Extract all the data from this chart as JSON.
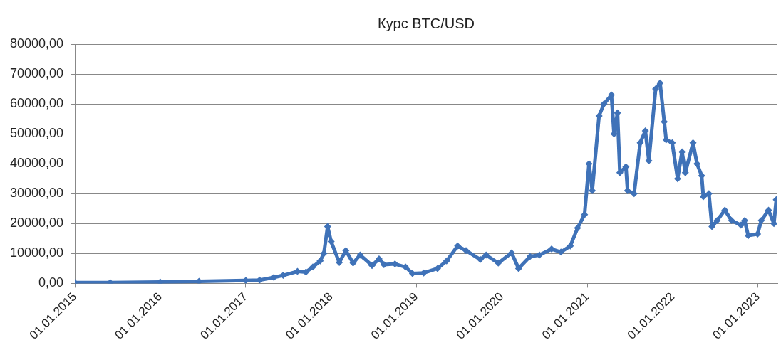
{
  "chart_data": {
    "type": "line",
    "title": "Курс BTC/USD",
    "marker": "diamond",
    "grid": "y",
    "legend": false,
    "x": [
      "2015-01-01",
      "2015-06-01",
      "2016-01-01",
      "2016-06-15",
      "2017-01-01",
      "2017-03-01",
      "2017-05-01",
      "2017-06-10",
      "2017-08-10",
      "2017-09-15",
      "2017-10-15",
      "2017-11-15",
      "2017-12-01",
      "2017-12-17",
      "2018-01-01",
      "2018-02-05",
      "2018-03-05",
      "2018-04-05",
      "2018-05-05",
      "2018-06-25",
      "2018-07-25",
      "2018-08-15",
      "2018-10-01",
      "2018-11-15",
      "2018-12-15",
      "2019-02-01",
      "2019-04-01",
      "2019-05-10",
      "2019-06-26",
      "2019-08-01",
      "2019-10-01",
      "2019-10-26",
      "2019-12-17",
      "2020-02-12",
      "2020-03-13",
      "2020-05-01",
      "2020-06-10",
      "2020-08-01",
      "2020-09-10",
      "2020-10-20",
      "2020-11-20",
      "2020-12-20",
      "2021-01-08",
      "2021-01-22",
      "2021-02-20",
      "2021-03-13",
      "2021-04-14",
      "2021-04-25",
      "2021-05-10",
      "2021-05-20",
      "2021-06-15",
      "2021-06-22",
      "2021-07-20",
      "2021-08-15",
      "2021-09-06",
      "2021-09-21",
      "2021-10-20",
      "2021-11-08",
      "2021-11-26",
      "2021-12-04",
      "2021-12-30",
      "2022-01-22",
      "2022-02-10",
      "2022-02-24",
      "2022-03-29",
      "2022-04-15",
      "2022-05-05",
      "2022-05-12",
      "2022-06-05",
      "2022-06-18",
      "2022-07-10",
      "2022-08-12",
      "2022-09-10",
      "2022-10-20",
      "2022-11-05",
      "2022-11-20",
      "2022-12-30",
      "2023-01-15",
      "2023-02-15",
      "2023-03-10",
      "2023-03-20"
    ],
    "series": [
      {
        "color": "#3f72b8",
        "values": [
          300,
          250,
          430,
          670,
          1000,
          1100,
          2000,
          2700,
          4000,
          3800,
          5500,
          7500,
          10000,
          19000,
          14000,
          7000,
          11000,
          6800,
          9500,
          6000,
          8200,
          6300,
          6500,
          5500,
          3300,
          3500,
          5000,
          7500,
          12500,
          11000,
          8000,
          9500,
          6800,
          10200,
          5000,
          9000,
          9500,
          11500,
          10500,
          12500,
          18500,
          23000,
          40000,
          31000,
          56000,
          60000,
          63000,
          50000,
          57000,
          37000,
          39000,
          31000,
          30000,
          47000,
          51000,
          41000,
          65000,
          67000,
          54000,
          48000,
          47000,
          35000,
          44000,
          37000,
          47000,
          40000,
          36000,
          29000,
          30000,
          19000,
          21000,
          24500,
          21000,
          19500,
          21000,
          16000,
          16500,
          21000,
          24500,
          20000,
          28000
        ]
      }
    ],
    "xlim": [
      "2015-01-01",
      "2023-03-25"
    ],
    "xticks": [
      {
        "value": "2015-01-01",
        "label": "01.01.2015"
      },
      {
        "value": "2016-01-01",
        "label": "01.01.2016"
      },
      {
        "value": "2017-01-01",
        "label": "01.01.2017"
      },
      {
        "value": "2018-01-01",
        "label": "01.01.2018"
      },
      {
        "value": "2019-01-01",
        "label": "01.01.2019"
      },
      {
        "value": "2020-01-01",
        "label": "01.01.2020"
      },
      {
        "value": "2021-01-01",
        "label": "01.01.2021"
      },
      {
        "value": "2022-01-01",
        "label": "01.01.2022"
      },
      {
        "value": "2023-01-01",
        "label": "01.01.2023"
      }
    ],
    "ylim": [
      0,
      80000
    ],
    "yticks": [
      {
        "value": 0,
        "label": "0,00"
      },
      {
        "value": 10000,
        "label": "10000,00"
      },
      {
        "value": 20000,
        "label": "20000,00"
      },
      {
        "value": 30000,
        "label": "30000,00"
      },
      {
        "value": 40000,
        "label": "40000,00"
      },
      {
        "value": 50000,
        "label": "50000,00"
      },
      {
        "value": 60000,
        "label": "60000,00"
      },
      {
        "value": 70000,
        "label": "70000,00"
      },
      {
        "value": 80000,
        "label": "80000,00"
      }
    ]
  }
}
